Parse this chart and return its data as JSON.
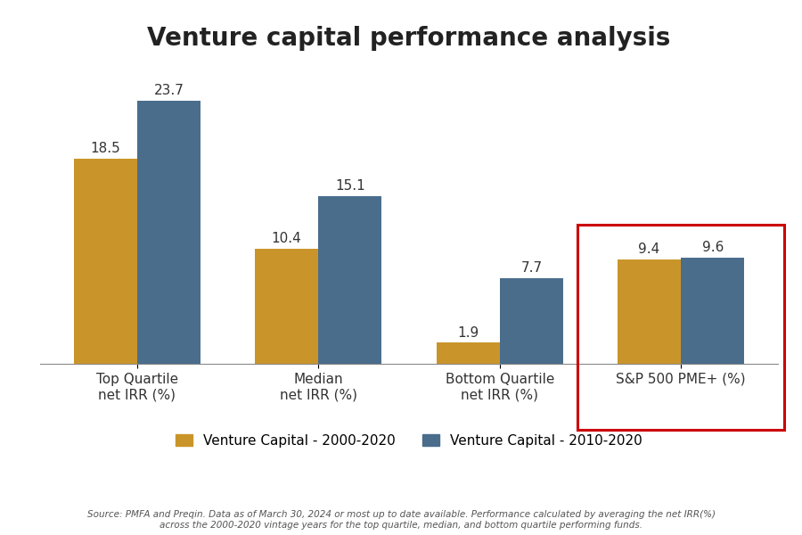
{
  "title": "Venture capital performance analysis",
  "categories": [
    "Top Quartile\nnet IRR (%)",
    "Median\nnet IRR (%)",
    "Bottom Quartile\nnet IRR (%)",
    "S&P 500 PME+ (%)"
  ],
  "series1_label": "Venture Capital - 2000-2020",
  "series2_label": "Venture Capital - 2010-2020",
  "series1_values": [
    18.5,
    10.4,
    1.9,
    9.4
  ],
  "series2_values": [
    23.7,
    15.1,
    7.7,
    9.6
  ],
  "series1_color": "#C9952A",
  "series2_color": "#4A6D8C",
  "bar_width": 0.35,
  "ylim": [
    0,
    27
  ],
  "title_fontsize": 20,
  "label_fontsize": 11,
  "value_fontsize": 11,
  "legend_fontsize": 11,
  "source_text": "Source: PMFA and Preqin. Data as of March 30, 2024 or most up to date available. Performance calculated by averaging the net IRR(%)\nacross the 2000-2020 vintage years for the top quartile, median, and bottom quartile performing funds.",
  "highlight_box_color": "#CC0000",
  "highlight_category_index": 3,
  "background_color": "#FFFFFF"
}
